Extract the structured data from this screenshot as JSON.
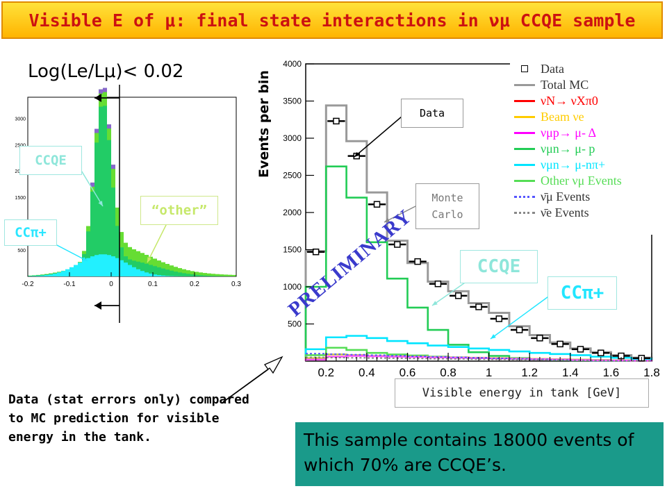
{
  "title": "Visible E of μ: final state interactions in νμ CCQE sample",
  "cut_label": "Log(Le/Lμ)< 0.02",
  "inset": {
    "labels": {
      "ccqe": "CCQE",
      "other": "“other”",
      "ccpi": "CCπ+"
    },
    "x_ticks": [
      "-0.2",
      "-0.1",
      "0",
      "0.1",
      "0.2",
      "0.3"
    ],
    "y_ticks": [
      "500",
      "1000",
      "1500",
      "2000",
      "2500",
      "3000"
    ]
  },
  "chart_data": {
    "type": "bar",
    "xlabel": "Visible energy in tank [GeV]",
    "ylabel": "Events per bin",
    "xlim": [
      0.1,
      1.8
    ],
    "ylim": [
      0,
      4000
    ],
    "x_ticks": [
      "0.2",
      "0.4",
      "0.6",
      "0.8",
      "1",
      "1.2",
      "1.4",
      "1.6",
      "1.8"
    ],
    "y_ticks": [
      "500",
      "1000",
      "1500",
      "2000",
      "2500",
      "3000",
      "3500",
      "4000"
    ],
    "bin_edges": [
      0.1,
      0.2,
      0.3,
      0.4,
      0.5,
      0.6,
      0.7,
      0.8,
      0.9,
      1.0,
      1.1,
      1.2,
      1.3,
      1.4,
      1.5,
      1.6,
      1.7,
      1.8
    ],
    "series": [
      {
        "name": "Data",
        "values": [
          1470,
          3230,
          2760,
          2110,
          1570,
          1340,
          1040,
          880,
          730,
          570,
          420,
          310,
          230,
          160,
          110,
          70,
          40
        ]
      },
      {
        "name": "Total MC",
        "values": [
          1480,
          3440,
          2960,
          2270,
          1620,
          1320,
          1070,
          940,
          780,
          650,
          470,
          350,
          250,
          170,
          120,
          80,
          45
        ]
      },
      {
        "name": "Beam νe",
        "values": [
          40,
          90,
          80,
          70,
          65,
          60,
          55,
          50,
          45,
          40,
          35,
          30,
          25,
          20,
          15,
          10,
          5
        ]
      },
      {
        "name": "νμ n→ μ- p",
        "values": [
          1000,
          2620,
          2200,
          1600,
          1110,
          720,
          420,
          220,
          120,
          70,
          40,
          25,
          15,
          10,
          5,
          5,
          5
        ]
      },
      {
        "name": "νμ n→ μ- nπ+",
        "values": [
          160,
          320,
          340,
          310,
          270,
          240,
          210,
          190,
          170,
          150,
          130,
          110,
          95,
          80,
          60,
          45,
          30
        ]
      },
      {
        "name": "νμp→ μ- Δ",
        "values": [
          20,
          60,
          70,
          65,
          60,
          55,
          50,
          45,
          40,
          35,
          30,
          25,
          20,
          15,
          10,
          8,
          5
        ]
      },
      {
        "name": "Other νμ Events",
        "values": [
          80,
          180,
          150,
          110,
          90,
          75,
          60,
          50,
          40,
          35,
          30,
          25,
          20,
          15,
          10,
          8,
          5
        ]
      }
    ]
  },
  "legend": {
    "items": [
      {
        "label": "Data",
        "color": "#000000"
      },
      {
        "label": "Total MC",
        "color": "#999999"
      },
      {
        "label": "νN→ νXπ0",
        "color": "#ff0000"
      },
      {
        "label": "Beam νe",
        "color": "#ffcc00"
      },
      {
        "label": "νμp→ μ- Δ",
        "color": "#ff00ff"
      },
      {
        "label": "νμn→ μ- p",
        "color": "#22cc55"
      },
      {
        "label": "νμn→ μ-nπ+",
        "color": "#00e5ff"
      },
      {
        "label": "Other νμ Events",
        "color": "#55dd55"
      },
      {
        "label": "ν̄μ Events",
        "color": "#5555ff"
      },
      {
        "label": "ν̄e Events",
        "color": "#888888"
      }
    ]
  },
  "annotations": {
    "data_box": "Data",
    "mc_box_line1": "Monte",
    "mc_box_line2": "Carlo",
    "ccqe": "CCQE",
    "ccpi": "CCπ+",
    "preliminary": "PRELIMINARY"
  },
  "data_note": "Data (stat errors only) compared to MC prediction for visible energy in the tank.",
  "summary": "This sample contains 18000 events of which 70% are CCQE’s."
}
